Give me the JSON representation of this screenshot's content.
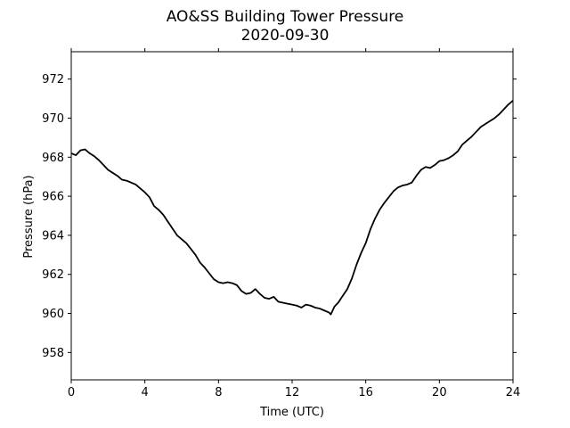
{
  "chart_data": {
    "type": "line",
    "title": "AO&SS Building Tower Pressure",
    "subtitle": "2020-09-30",
    "xlabel": "Time (UTC)",
    "ylabel": "Pressure (hPa)",
    "xlim": [
      0,
      24
    ],
    "ylim": [
      956.6,
      973.4
    ],
    "xticks": [
      0,
      4,
      8,
      12,
      16,
      20,
      24
    ],
    "yticks": [
      958,
      960,
      962,
      964,
      966,
      968,
      970,
      972
    ],
    "grid": false,
    "line_color": "#000000",
    "series": [
      {
        "x": [
          0.0,
          0.25,
          0.5,
          0.75,
          1.0,
          1.25,
          1.5,
          1.75,
          2.0,
          2.25,
          2.5,
          2.75,
          3.0,
          3.25,
          3.5,
          3.75,
          4.0,
          4.25,
          4.5,
          4.75,
          5.0,
          5.25,
          5.5,
          5.75,
          6.0,
          6.25,
          6.5,
          6.75,
          7.0,
          7.25,
          7.5,
          7.75,
          8.0,
          8.25,
          8.5,
          8.75,
          9.0,
          9.25,
          9.5,
          9.75,
          10.0,
          10.25,
          10.5,
          10.75,
          11.0,
          11.25,
          11.5,
          11.75,
          12.0,
          12.25,
          12.5,
          12.75,
          13.0,
          13.25,
          13.5,
          13.75,
          14.0,
          14.1,
          14.2,
          14.3,
          14.5,
          14.75,
          15.0,
          15.25,
          15.5,
          15.75,
          16.0,
          16.25,
          16.5,
          16.75,
          17.0,
          17.25,
          17.5,
          17.75,
          18.0,
          18.25,
          18.5,
          18.75,
          19.0,
          19.25,
          19.5,
          19.75,
          20.0,
          20.25,
          20.5,
          20.75,
          21.0,
          21.25,
          21.5,
          21.75,
          22.0,
          22.25,
          22.5,
          22.75,
          23.0,
          23.25,
          23.5,
          23.75,
          24.0
        ],
        "y": [
          968.2,
          968.1,
          968.35,
          968.4,
          968.2,
          968.05,
          967.85,
          967.6,
          967.35,
          967.2,
          967.05,
          966.85,
          966.8,
          966.7,
          966.6,
          966.4,
          966.2,
          965.95,
          965.5,
          965.3,
          965.05,
          964.7,
          964.35,
          964.0,
          963.8,
          963.6,
          963.3,
          963.0,
          962.6,
          962.35,
          962.05,
          961.75,
          961.6,
          961.55,
          961.6,
          961.55,
          961.45,
          961.15,
          961.0,
          961.05,
          961.25,
          961.0,
          960.8,
          960.75,
          960.85,
          960.6,
          960.55,
          960.5,
          960.45,
          960.4,
          960.3,
          960.45,
          960.4,
          960.3,
          960.25,
          960.15,
          960.05,
          959.95,
          960.15,
          960.35,
          960.55,
          960.9,
          961.25,
          961.8,
          962.5,
          963.1,
          963.6,
          964.3,
          964.85,
          965.3,
          965.65,
          965.95,
          966.25,
          966.45,
          966.55,
          966.6,
          966.7,
          967.05,
          967.35,
          967.5,
          967.45,
          967.6,
          967.8,
          967.85,
          967.95,
          968.1,
          968.3,
          968.65,
          968.85,
          969.05,
          969.3,
          969.55,
          969.7,
          969.85,
          970.0,
          970.2,
          970.45,
          970.7,
          970.9
        ]
      }
    ]
  }
}
